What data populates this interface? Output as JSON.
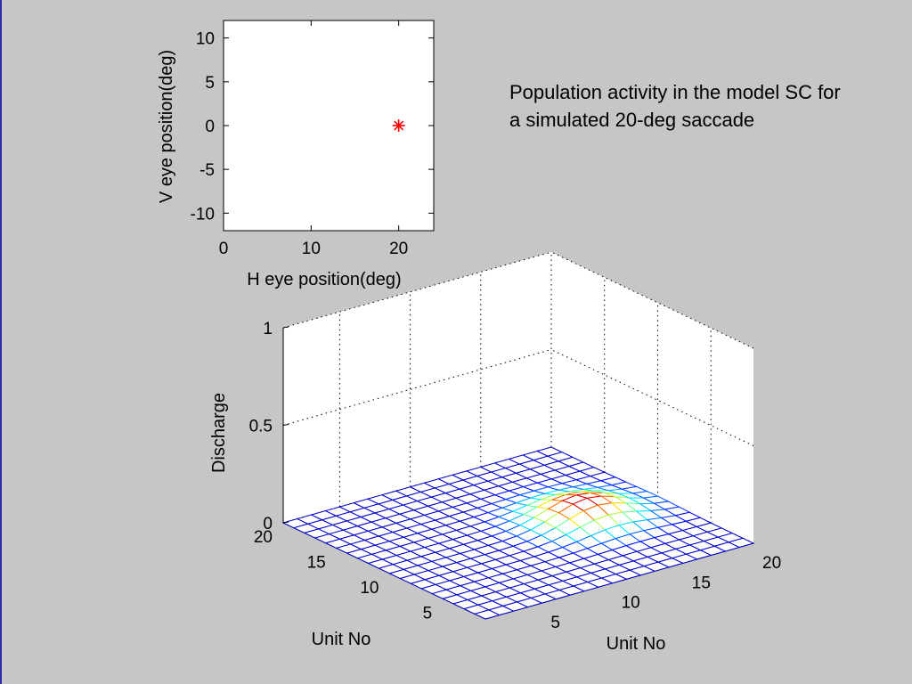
{
  "slide": {
    "caption": "Population activity in the model SC for a simulated 20-deg saccade"
  },
  "colors": {
    "background": "#c6c6c6",
    "marker": "#ff0000",
    "mesh_base": "#0000c8",
    "left_rule": "#2b2bb0"
  },
  "chart_data": [
    {
      "type": "scatter",
      "xlabel": "H eye position(deg)",
      "ylabel": "V eye position(deg)",
      "xlim": [
        0,
        24
      ],
      "ylim": [
        -12,
        12
      ],
      "xticks": [
        0,
        10,
        20
      ],
      "yticks": [
        10,
        5,
        0,
        -5,
        -10
      ],
      "marker": "*",
      "points": [
        {
          "x": 20,
          "y": 0
        }
      ],
      "grid": false
    },
    {
      "type": "surface",
      "xlabel": "Unit No",
      "ylabel": "Unit No",
      "zlabel": "Discharge",
      "xlim": [
        1,
        20
      ],
      "ylim": [
        1,
        20
      ],
      "zlim": [
        0,
        1
      ],
      "xticks": [
        5,
        10,
        15,
        20
      ],
      "yticks": [
        5,
        10,
        15,
        20
      ],
      "zticks": [
        0,
        0.5,
        1
      ],
      "zticklabels": [
        "0",
        "0.5",
        "1"
      ],
      "grid": true,
      "colormap": "jet",
      "peak": {
        "x": 15,
        "y": 10,
        "z": 0.1,
        "width": 2.2
      }
    }
  ]
}
